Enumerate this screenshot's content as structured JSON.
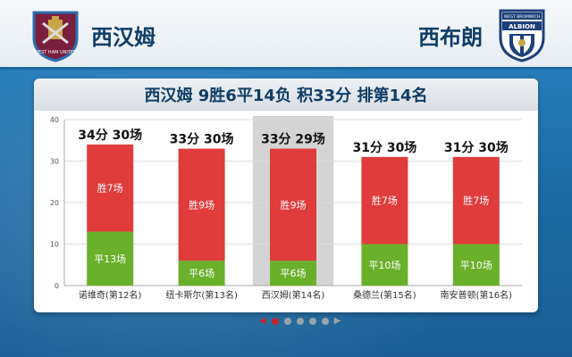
{
  "header": {
    "left_team": "西汉姆",
    "right_team": "西布朗",
    "left_crest_icon": "west-ham-crest-icon",
    "right_crest_icon": "west-brom-albion-crest-icon",
    "left_crest_text": "WEST HAM UNITED",
    "right_crest_text_top": "WEST BROMWICH",
    "right_crest_text_main": "ALBION"
  },
  "colors": {
    "win": "#e03c3c",
    "draw": "#6ab02a",
    "highlight": "#d4d4d4",
    "title": "#0f3d66"
  },
  "chart_data": {
    "type": "bar",
    "title": "西汉姆 9胜6平14负 积33分 排第14名",
    "ylim": [
      0,
      40
    ],
    "yticks": [
      0,
      10,
      20,
      30,
      40
    ],
    "categories": [
      "诺维奇(第12名)",
      "纽卡斯尔(第13名)",
      "西汉姆(第14名)",
      "桑德兰(第15名)",
      "南安普顿(第16名)"
    ],
    "highlight_index": 2,
    "series": [
      {
        "key": "draw",
        "values": [
          13,
          6,
          6,
          10,
          10
        ],
        "labels": [
          "平13场",
          "平6场",
          "平6场",
          "平10场",
          "平10场"
        ]
      },
      {
        "key": "win",
        "values": [
          21,
          27,
          27,
          21,
          21
        ],
        "labels": [
          "胜7场",
          "胜9场",
          "胜9场",
          "胜7场",
          "胜7场"
        ]
      }
    ],
    "top_labels": [
      "34分 30场",
      "33分 30场",
      "33分 29场",
      "31分 30场",
      "31分 30场"
    ],
    "grid": true
  },
  "pager": {
    "count": 5,
    "active": 0
  }
}
